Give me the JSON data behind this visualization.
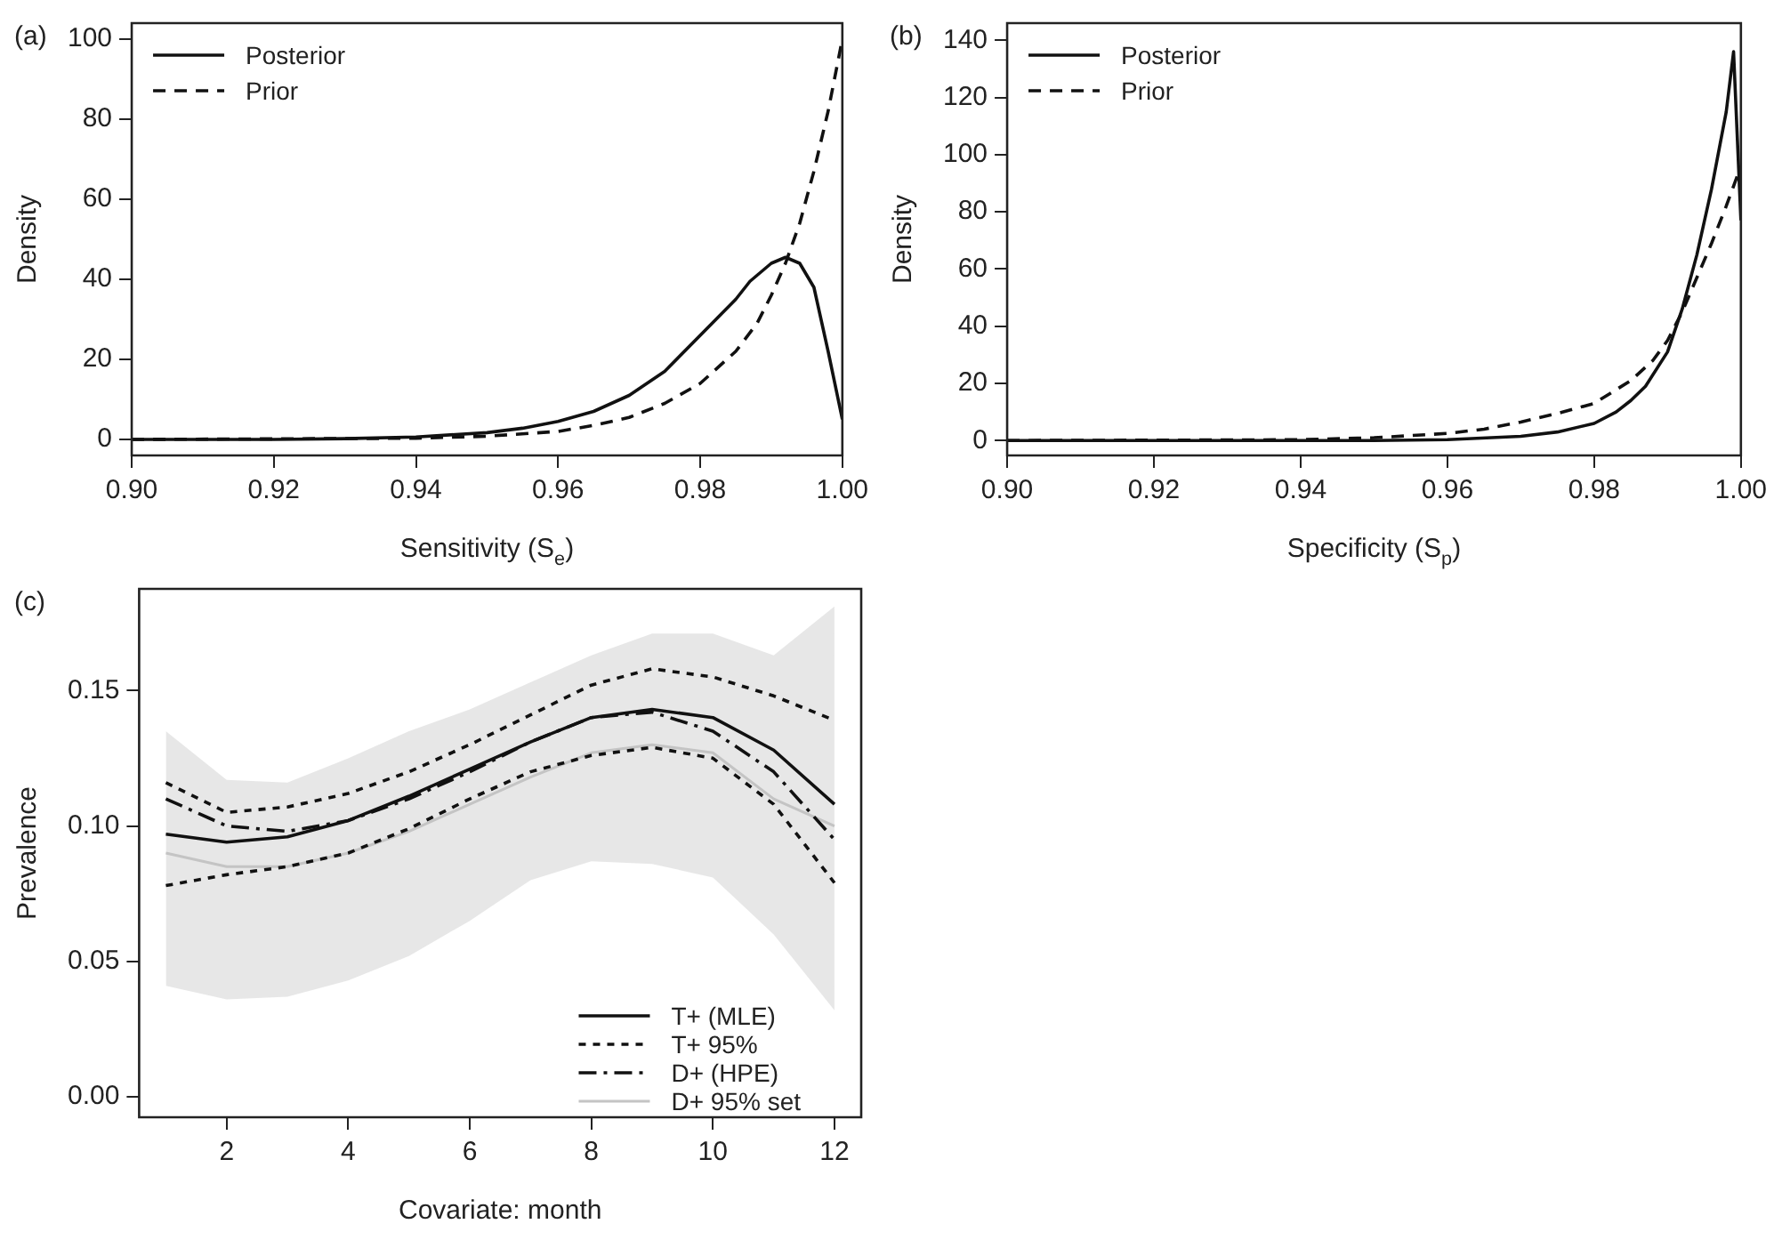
{
  "chart_data": [
    {
      "type": "line",
      "title": "(a)",
      "xlabel": "Sensitivity (S$_{e}$)",
      "ylabel": "Density",
      "legend": "top left",
      "xlim": [
        0.9,
        1.0
      ],
      "ylim": [
        -4,
        104
      ],
      "xticks": [
        {
          "value": 0.9,
          "label": "0.90"
        },
        {
          "value": 0.92,
          "label": "0.92"
        },
        {
          "value": 0.94,
          "label": "0.94"
        },
        {
          "value": 0.96,
          "label": "0.96"
        },
        {
          "value": 0.98,
          "label": "0.98"
        },
        {
          "value": 1.0,
          "label": "1.00"
        }
      ],
      "yticks": [
        0,
        20,
        40,
        60,
        80,
        100
      ],
      "series": [
        {
          "name": "Posterior",
          "color": "#111111",
          "line_style": "solid",
          "x": [
            0.9,
            0.92,
            0.93,
            0.94,
            0.95,
            0.955,
            0.96,
            0.965,
            0.97,
            0.975,
            0.98,
            0.985,
            0.987,
            0.99,
            0.992,
            0.994,
            0.996,
            0.998,
            1.0
          ],
          "values": [
            0,
            0,
            0.2,
            0.6,
            1.7,
            2.8,
            4.5,
            7,
            11,
            17,
            26,
            35,
            39.5,
            44,
            45.5,
            44,
            38,
            22,
            5
          ]
        },
        {
          "name": "Prior",
          "color": "#111111",
          "line_style": "dashed",
          "x": [
            0.9,
            0.94,
            0.95,
            0.96,
            0.965,
            0.97,
            0.975,
            0.98,
            0.985,
            0.988,
            0.99,
            0.992,
            0.994,
            0.996,
            0.998,
            1.0
          ],
          "values": [
            0,
            0.3,
            0.8,
            2,
            3.5,
            5.5,
            9,
            14,
            22,
            29,
            36,
            44,
            54,
            67,
            82,
            100
          ]
        }
      ]
    },
    {
      "type": "line",
      "title": "(b)",
      "xlabel": "Specificity (S$_{p}$)",
      "ylabel": "Density",
      "legend": "top left",
      "xlim": [
        0.9,
        1.0
      ],
      "ylim": [
        -5.2,
        146
      ],
      "xticks": [
        {
          "value": 0.9,
          "label": "0.90"
        },
        {
          "value": 0.92,
          "label": "0.92"
        },
        {
          "value": 0.94,
          "label": "0.94"
        },
        {
          "value": 0.96,
          "label": "0.96"
        },
        {
          "value": 0.98,
          "label": "0.98"
        },
        {
          "value": 1.0,
          "label": "1.00"
        }
      ],
      "yticks": [
        0,
        20,
        40,
        60,
        80,
        100,
        120,
        140
      ],
      "series": [
        {
          "name": "Posterior",
          "color": "#111111",
          "line_style": "solid",
          "x": [
            0.9,
            0.95,
            0.96,
            0.97,
            0.975,
            0.98,
            0.983,
            0.985,
            0.987,
            0.99,
            0.992,
            0.994,
            0.996,
            0.998,
            0.999,
            1.0
          ],
          "values": [
            0,
            0,
            0.3,
            1.5,
            3,
            6,
            10,
            14,
            19,
            31,
            46,
            65,
            88,
            115,
            136,
            77
          ]
        },
        {
          "name": "Prior",
          "color": "#111111",
          "line_style": "dashed",
          "x": [
            0.9,
            0.94,
            0.95,
            0.96,
            0.965,
            0.97,
            0.975,
            0.98,
            0.985,
            0.988,
            0.99,
            0.992,
            0.994,
            0.996,
            0.998,
            1.0
          ],
          "values": [
            0,
            0.3,
            1,
            2.5,
            4,
            6.5,
            9.5,
            13,
            21,
            28,
            35,
            45,
            57,
            69,
            82,
            96
          ]
        }
      ]
    },
    {
      "type": "line",
      "title": "(c)",
      "xlabel": "Covariate: month",
      "ylabel": "Prevalence",
      "legend": "bottom right",
      "xlim": [
        0.56,
        12.44
      ],
      "ylim": [
        -0.0075,
        0.1875
      ],
      "xticks": [
        2,
        4,
        6,
        8,
        10,
        12
      ],
      "yticks": [
        {
          "value": 0,
          "label": "0.00"
        },
        {
          "value": 0.05,
          "label": "0.05"
        },
        {
          "value": 0.1,
          "label": "0.10"
        },
        {
          "value": 0.15,
          "label": "0.15"
        }
      ],
      "x": [
        1,
        2,
        3,
        4,
        5,
        6,
        7,
        8,
        9,
        10,
        11,
        12
      ],
      "series": [
        {
          "name": "T+ (MLE)",
          "color": "#111111",
          "line_style": "solid",
          "values": [
            0.097,
            0.094,
            0.096,
            0.102,
            0.111,
            0.121,
            0.131,
            0.14,
            0.143,
            0.14,
            0.128,
            0.108
          ]
        },
        {
          "name": "T+ 95%",
          "color": "#111111",
          "line_style": "dotted",
          "values": [
            0.116,
            0.105,
            0.107,
            0.112,
            0.12,
            0.13,
            0.141,
            0.152,
            0.158,
            0.155,
            0.148,
            0.139
          ]
        },
        {
          "color": "#111111",
          "line_style": "dotted",
          "values": [
            0.078,
            0.082,
            0.085,
            0.09,
            0.099,
            0.11,
            0.12,
            0.126,
            0.129,
            0.125,
            0.108,
            0.079
          ]
        },
        {
          "name": "D+ (HPE)",
          "color": "#111111",
          "line_style": "dashdot",
          "values": [
            0.11,
            0.1,
            0.098,
            0.102,
            0.11,
            0.12,
            0.131,
            0.14,
            0.142,
            0.135,
            0.12,
            0.095
          ]
        },
        {
          "name": "D+ 95% set",
          "color": "#c4c4c4",
          "values": [
            0.09,
            0.085,
            0.085,
            0.09,
            0.098,
            0.108,
            0.118,
            0.127,
            0.13,
            0.127,
            0.11,
            0.1
          ],
          "lower": [
            0.041,
            0.036,
            0.037,
            0.043,
            0.052,
            0.065,
            0.08,
            0.087,
            0.086,
            0.081,
            0.06,
            0.032
          ],
          "upper": [
            0.135,
            0.117,
            0.116,
            0.125,
            0.135,
            0.143,
            0.153,
            0.163,
            0.171,
            0.171,
            0.163,
            0.181
          ]
        }
      ]
    }
  ]
}
